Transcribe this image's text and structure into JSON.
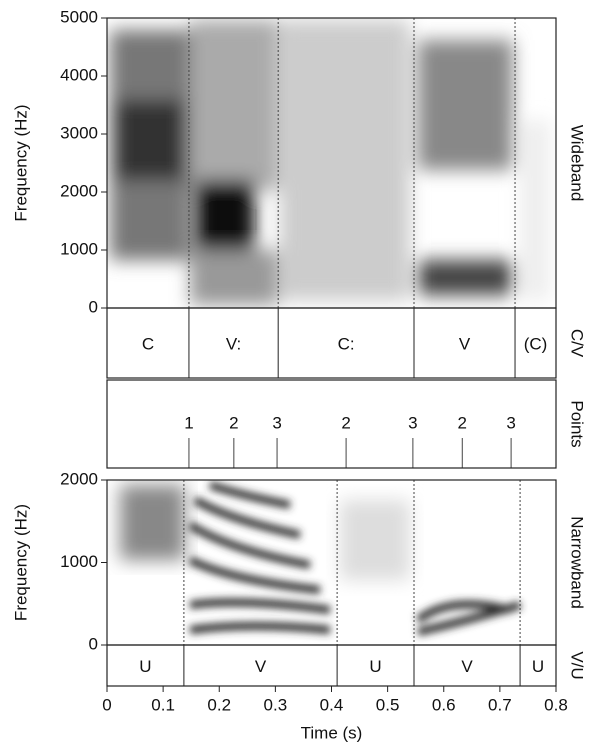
{
  "wideband": {
    "y_label": "Frequency (Hz)",
    "side_label": "Wideband",
    "ylim": [
      0,
      5000
    ],
    "yticks": [
      0,
      1000,
      2000,
      3000,
      4000,
      5000
    ],
    "boundaries": [
      0.146,
      0.305,
      0.547,
      0.727
    ]
  },
  "cv_tier": {
    "side_label": "C/V",
    "labels": [
      "C",
      "V:",
      "C:",
      "V",
      "(C)"
    ],
    "boundaries": [
      0.146,
      0.305,
      0.547,
      0.727
    ]
  },
  "points_tier": {
    "side_label": "Points",
    "points": [
      {
        "label": "1",
        "time": 0.146
      },
      {
        "label": "2",
        "time": 0.226
      },
      {
        "label": "3",
        "time": 0.303
      },
      {
        "label": "2",
        "time": 0.426
      },
      {
        "label": "3",
        "time": 0.545
      },
      {
        "label": "2",
        "time": 0.633
      },
      {
        "label": "3",
        "time": 0.72
      }
    ]
  },
  "narrowband": {
    "y_label": "Frequency (Hz)",
    "side_label": "Narrowband",
    "ylim": [
      0,
      2000
    ],
    "yticks": [
      0,
      1000,
      2000
    ],
    "boundaries": [
      0.137,
      0.41,
      0.547,
      0.736
    ]
  },
  "vu_tier": {
    "side_label": "V/U",
    "labels": [
      "U",
      "V",
      "U",
      "V",
      "U"
    ],
    "boundaries": [
      0.137,
      0.41,
      0.547,
      0.736
    ]
  },
  "x_axis": {
    "label": "Time (s)",
    "xlim": [
      0,
      0.8
    ],
    "xticks": [
      0,
      0.1,
      0.2,
      0.3,
      0.4,
      0.5,
      0.6,
      0.7,
      0.8
    ]
  }
}
